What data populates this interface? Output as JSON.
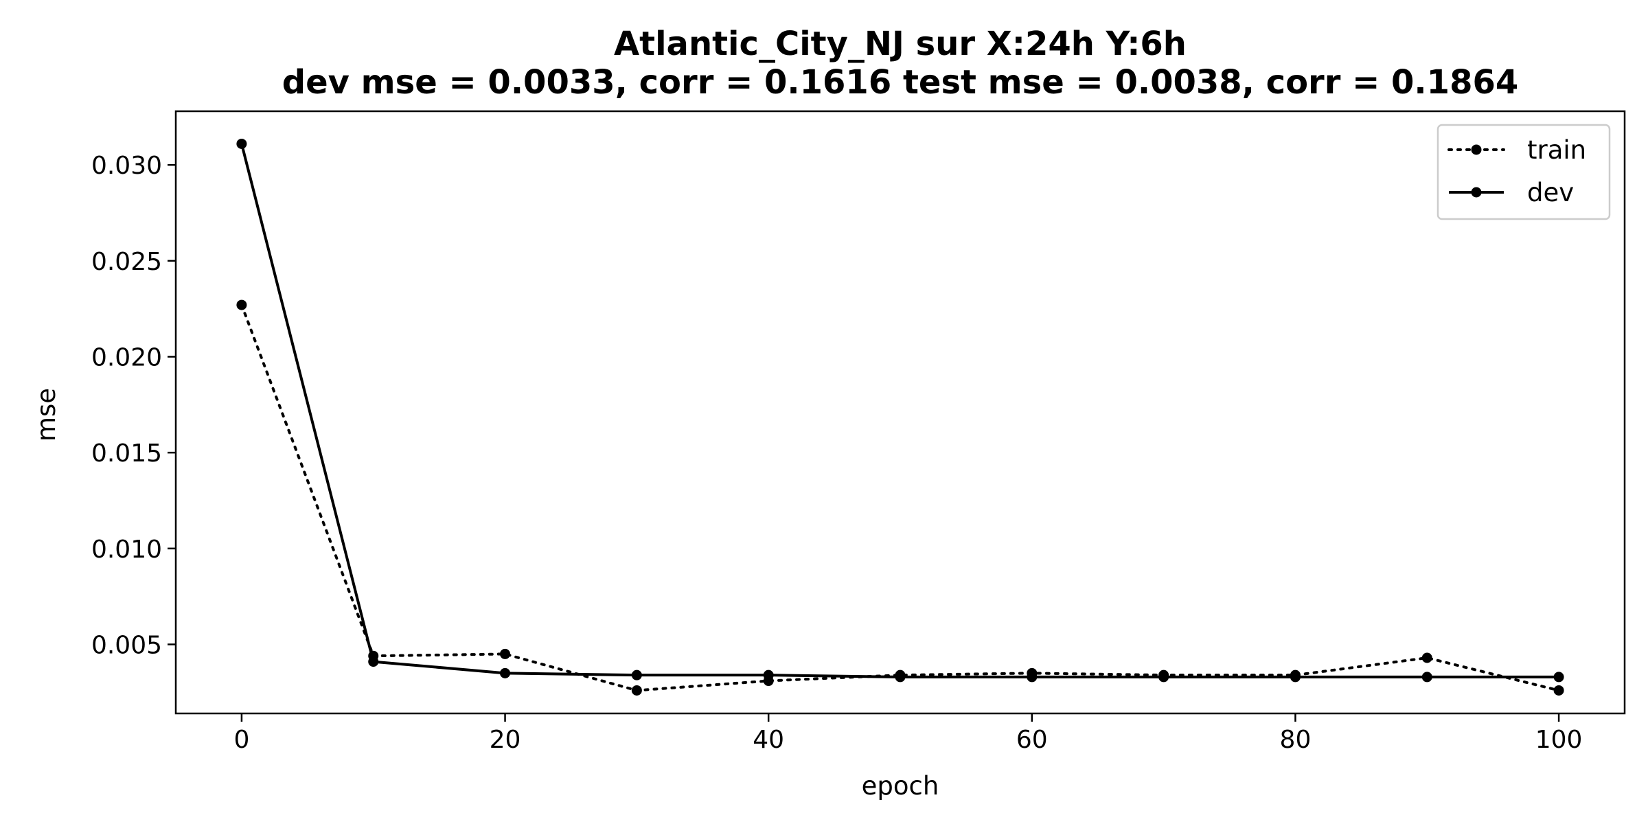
{
  "chart_data": {
    "type": "line",
    "title": "Atlantic_City_NJ   sur   X:24h   Y:6h",
    "subtitle": "dev mse = 0.0033, corr = 0.1616   test mse = 0.0038, corr = 0.1864",
    "xlabel": "epoch",
    "ylabel": "mse",
    "xlim": [
      -5,
      105
    ],
    "ylim": [
      0.0014,
      0.0328
    ],
    "xticks": [
      0,
      20,
      40,
      60,
      80,
      100
    ],
    "xtick_labels": [
      "0",
      "20",
      "40",
      "60",
      "80",
      "100"
    ],
    "yticks": [
      0.005,
      0.01,
      0.015,
      0.02,
      0.025,
      0.03
    ],
    "ytick_labels": [
      "0.005",
      "0.010",
      "0.015",
      "0.020",
      "0.025",
      "0.030"
    ],
    "grid": false,
    "legend_position": "top-right",
    "x": [
      0,
      10,
      20,
      30,
      40,
      50,
      60,
      70,
      80,
      90,
      100
    ],
    "series": [
      {
        "name": "train",
        "style": "dotted",
        "color": "#000000",
        "values": [
          0.0227,
          0.0044,
          0.0045,
          0.0026,
          0.0031,
          0.0034,
          0.0035,
          0.0034,
          0.0034,
          0.0043,
          0.0026
        ]
      },
      {
        "name": "dev",
        "style": "solid",
        "color": "#000000",
        "values": [
          0.0311,
          0.0041,
          0.0035,
          0.0034,
          0.0034,
          0.0033,
          0.0033,
          0.0033,
          0.0033,
          0.0033,
          0.0033
        ]
      }
    ]
  }
}
